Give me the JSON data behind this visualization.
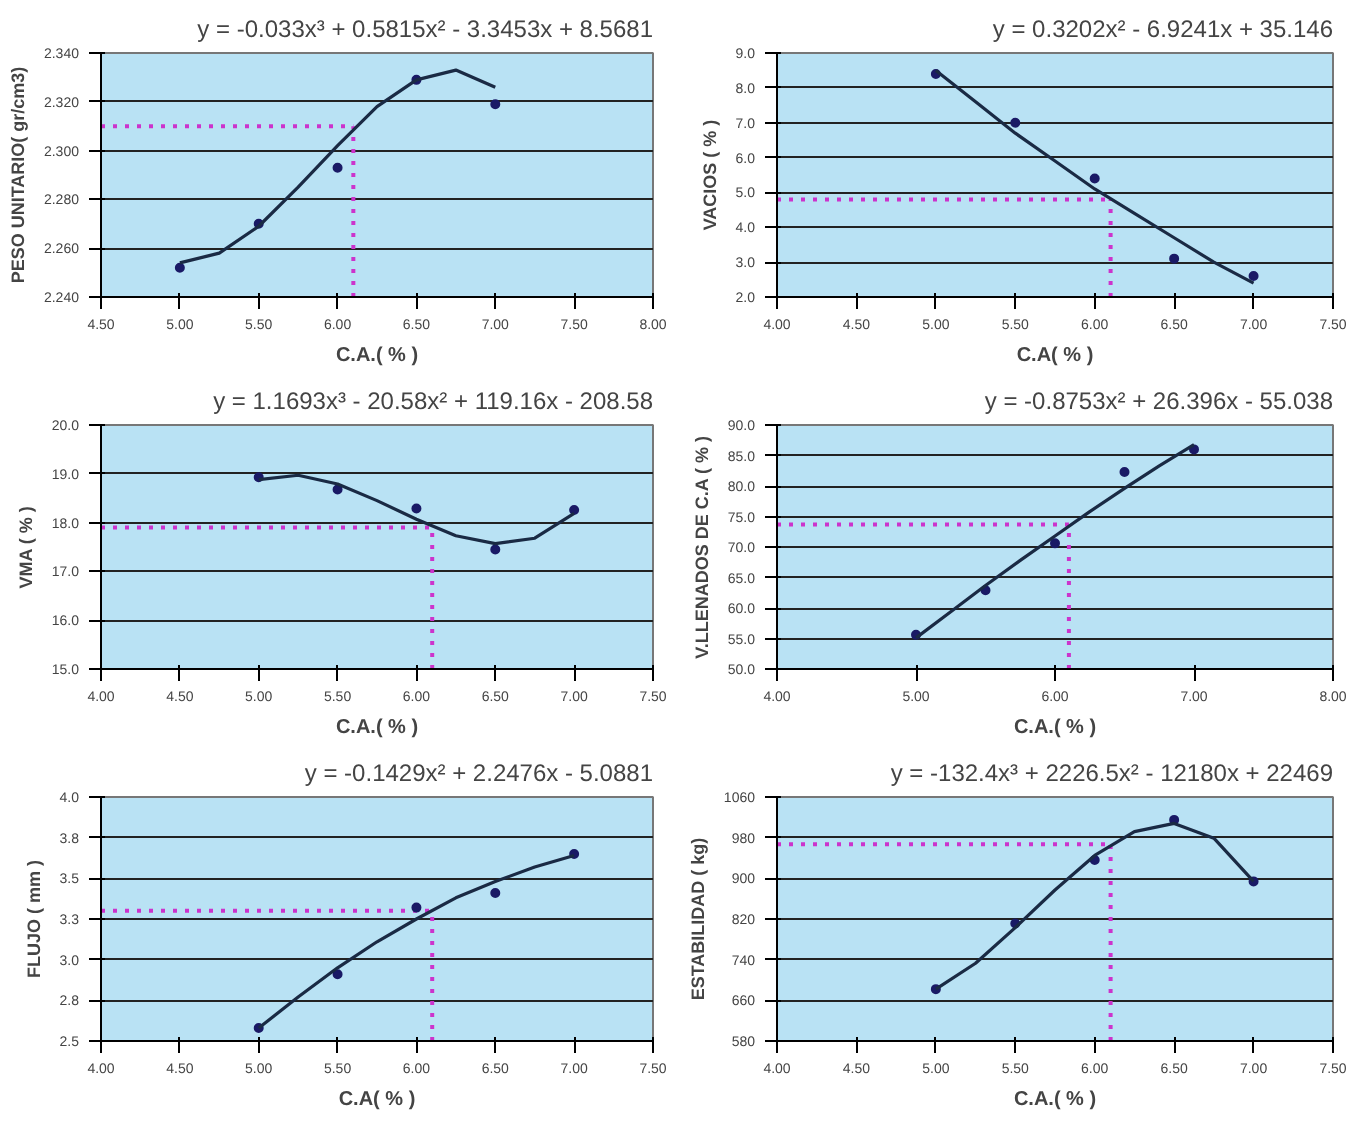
{
  "chart_data": [
    {
      "type": "scatter",
      "title": "y = -0.033x³ + 0.5815x² - 3.3453x + 8.5681",
      "xlabel": "C.A.( % )",
      "ylabel": "PESO UNITARIO( gr/cm3)",
      "x": [
        5.0,
        5.5,
        6.0,
        6.5,
        7.0
      ],
      "series": [
        {
          "color": "#1a1a66",
          "marker": "circle",
          "values": [
            2.252,
            2.27,
            2.293,
            2.329,
            2.319
          ]
        },
        {
          "type": "line",
          "marker": "none",
          "color": "#1a2a44",
          "x": [
            5.0,
            5.25,
            5.5,
            5.75,
            6.0,
            6.25,
            6.5,
            6.75,
            7.0
          ],
          "values": [
            2.254,
            2.258,
            2.269,
            2.285,
            2.302,
            2.318,
            2.329,
            2.333,
            2.326
          ]
        }
      ],
      "xlim": [
        4.5,
        8.0
      ],
      "xticks": [
        {
          "value": 4.5,
          "label": "4.50"
        },
        {
          "value": 5.0,
          "label": "5.00"
        },
        {
          "value": 5.5,
          "label": "5.50"
        },
        {
          "value": 6.0,
          "label": "6.00"
        },
        {
          "value": 6.5,
          "label": "6.50"
        },
        {
          "value": 7.0,
          "label": "7.00"
        },
        {
          "value": 7.5,
          "label": "7.50"
        },
        {
          "value": 8.0,
          "label": "8.00"
        }
      ],
      "ylim": [
        2.24,
        2.34
      ],
      "yticks": [
        {
          "value": 2.24,
          "label": "2.240"
        },
        {
          "value": 2.26,
          "label": "2.260"
        },
        {
          "value": 2.28,
          "label": "2.280"
        },
        {
          "value": 2.3,
          "label": "2.300"
        },
        {
          "value": 2.32,
          "label": "2.320"
        },
        {
          "value": 2.34,
          "label": "2.340"
        }
      ],
      "ref_lines": [
        {
          "axis": "x",
          "value": 6.1,
          "color": "#cc33cc",
          "line_style": "dotted"
        },
        {
          "axis": "y",
          "value": 2.31,
          "color": "#cc33cc",
          "line_style": "dotted"
        }
      ],
      "grid": "y"
    },
    {
      "type": "scatter",
      "title": "y = 0.3202x² - 6.9241x + 35.146",
      "xlabel": "C.A( % )",
      "ylabel": "VACIOS ( % )",
      "x": [
        5.0,
        5.5,
        6.0,
        6.5,
        7.0
      ],
      "series": [
        {
          "color": "#1a1a66",
          "marker": "circle",
          "values": [
            8.4,
            7.0,
            5.4,
            3.1,
            2.6
          ]
        },
        {
          "type": "line",
          "marker": "none",
          "color": "#1a2a44",
          "x": [
            5.0,
            5.25,
            5.5,
            5.75,
            6.0,
            6.25,
            6.5,
            6.75,
            7.0
          ],
          "values": [
            8.5,
            7.6,
            6.7,
            5.9,
            5.1,
            4.4,
            3.7,
            3.0,
            2.4
          ]
        }
      ],
      "xlim": [
        4.0,
        7.5
      ],
      "xticks": [
        {
          "value": 4.0,
          "label": "4.00"
        },
        {
          "value": 4.5,
          "label": "4.50"
        },
        {
          "value": 5.0,
          "label": "5.00"
        },
        {
          "value": 5.5,
          "label": "5.50"
        },
        {
          "value": 6.0,
          "label": "6.00"
        },
        {
          "value": 6.5,
          "label": "6.50"
        },
        {
          "value": 7.0,
          "label": "7.00"
        },
        {
          "value": 7.5,
          "label": "7.50"
        }
      ],
      "ylim": [
        2.0,
        9.0
      ],
      "yticks": [
        {
          "value": 2,
          "label": "2.0"
        },
        {
          "value": 3,
          "label": "3.0"
        },
        {
          "value": 4,
          "label": "4.0"
        },
        {
          "value": 5,
          "label": "5.0"
        },
        {
          "value": 6,
          "label": "6.0"
        },
        {
          "value": 7,
          "label": "7.0"
        },
        {
          "value": 8,
          "label": "8.0"
        },
        {
          "value": 9,
          "label": "9.0"
        }
      ],
      "ref_lines": [
        {
          "axis": "x",
          "value": 6.1,
          "color": "#cc33cc",
          "line_style": "dotted"
        },
        {
          "axis": "y",
          "value": 4.8,
          "color": "#cc33cc",
          "line_style": "dotted"
        }
      ],
      "grid": "y"
    },
    {
      "type": "scatter",
      "title": "y = 1.1693x³ - 20.58x² + 119.16x - 208.58",
      "xlabel": "C.A.( % )",
      "ylabel": "VMA ( % )",
      "x": [
        5.0,
        5.5,
        6.0,
        6.5,
        7.0
      ],
      "series": [
        {
          "color": "#1a1a66",
          "marker": "circle",
          "values": [
            18.93,
            18.68,
            18.29,
            17.45,
            18.26
          ]
        },
        {
          "type": "line",
          "marker": "none",
          "color": "#1a2a44",
          "x": [
            5.0,
            5.25,
            5.5,
            5.75,
            6.0,
            6.25,
            6.5,
            6.75,
            7.0
          ],
          "values": [
            18.88,
            18.97,
            18.79,
            18.45,
            18.07,
            17.73,
            17.57,
            17.68,
            18.19
          ]
        }
      ],
      "xlim": [
        4.0,
        7.5
      ],
      "xticks": [
        {
          "value": 4.0,
          "label": "4.00"
        },
        {
          "value": 4.5,
          "label": "4.50"
        },
        {
          "value": 5.0,
          "label": "5.00"
        },
        {
          "value": 5.5,
          "label": "5.50"
        },
        {
          "value": 6.0,
          "label": "6.00"
        },
        {
          "value": 6.5,
          "label": "6.50"
        },
        {
          "value": 7.0,
          "label": "7.00"
        },
        {
          "value": 7.5,
          "label": "7.50"
        }
      ],
      "ylim": [
        15.0,
        20.0
      ],
      "yticks": [
        {
          "value": 15,
          "label": "15.0"
        },
        {
          "value": 16,
          "label": "16.0"
        },
        {
          "value": 17,
          "label": "17.0"
        },
        {
          "value": 18,
          "label": "18.0"
        },
        {
          "value": 19,
          "label": "19.0"
        },
        {
          "value": 20,
          "label": "20.0"
        }
      ],
      "ref_lines": [
        {
          "axis": "x",
          "value": 6.1,
          "color": "#cc33cc",
          "line_style": "dotted"
        },
        {
          "axis": "y",
          "value": 17.9,
          "color": "#cc33cc",
          "line_style": "dotted"
        }
      ],
      "grid": "y"
    },
    {
      "type": "scatter",
      "title": "y = -0.8753x² + 26.396x - 55.038",
      "xlabel": "C.A.( % )",
      "ylabel": "V.LLENADOS DE C.A ( % )",
      "x": [
        5.0,
        5.5,
        6.0,
        6.5,
        7.0
      ],
      "series": [
        {
          "color": "#1a1a66",
          "marker": "circle",
          "values": [
            55.6,
            62.9,
            70.6,
            82.3,
            86.0
          ]
        },
        {
          "type": "line",
          "marker": "none",
          "color": "#1a2a44",
          "x": [
            5.0,
            5.25,
            5.5,
            5.75,
            6.0,
            6.25,
            6.5,
            6.75,
            7.0
          ],
          "values": [
            55.1,
            59.4,
            63.7,
            67.8,
            71.8,
            75.8,
            79.6,
            83.3,
            86.8
          ]
        }
      ],
      "xlim": [
        4.0,
        8.0
      ],
      "xticks": [
        {
          "value": 4.0,
          "label": "4.00"
        },
        {
          "value": 5.0,
          "label": "5.00"
        },
        {
          "value": 6.0,
          "label": "6.00"
        },
        {
          "value": 7.0,
          "label": "7.00"
        },
        {
          "value": 8.0,
          "label": "8.00"
        }
      ],
      "ylim": [
        50.0,
        90.0
      ],
      "yticks": [
        {
          "value": 50,
          "label": "50.0"
        },
        {
          "value": 55,
          "label": "55.0"
        },
        {
          "value": 60,
          "label": "60.0"
        },
        {
          "value": 65,
          "label": "65.0"
        },
        {
          "value": 70,
          "label": "70.0"
        },
        {
          "value": 75,
          "label": "75.0"
        },
        {
          "value": 80,
          "label": "80.0"
        },
        {
          "value": 85,
          "label": "85.0"
        },
        {
          "value": 90,
          "label": "90.0"
        }
      ],
      "ref_lines": [
        {
          "axis": "x",
          "value": 6.1,
          "color": "#cc33cc",
          "line_style": "dotted"
        },
        {
          "axis": "y",
          "value": 73.7,
          "color": "#cc33cc",
          "line_style": "dotted"
        }
      ],
      "grid": "y"
    },
    {
      "type": "scatter",
      "title": "y = -0.1429x² + 2.2476x - 5.0881",
      "xlabel": "C.A( % )",
      "ylabel": "FLUJO ( mm )",
      "x": [
        5.0,
        5.5,
        6.0,
        6.5,
        7.0
      ],
      "series": [
        {
          "color": "#1a1a66",
          "marker": "circle",
          "values": [
            2.58,
            2.91,
            3.32,
            3.41,
            3.65
          ]
        },
        {
          "type": "line",
          "marker": "none",
          "color": "#1a2a44",
          "x": [
            5.0,
            5.25,
            5.5,
            5.75,
            6.0,
            6.25,
            6.5,
            6.75,
            7.0
          ],
          "values": [
            2.58,
            2.77,
            2.95,
            3.11,
            3.25,
            3.38,
            3.48,
            3.57,
            3.64
          ]
        }
      ],
      "xlim": [
        4.0,
        7.5
      ],
      "xticks": [
        {
          "value": 4.0,
          "label": "4.00"
        },
        {
          "value": 4.5,
          "label": "4.50"
        },
        {
          "value": 5.0,
          "label": "5.00"
        },
        {
          "value": 5.5,
          "label": "5.50"
        },
        {
          "value": 6.0,
          "label": "6.00"
        },
        {
          "value": 6.5,
          "label": "6.50"
        },
        {
          "value": 7.0,
          "label": "7.00"
        },
        {
          "value": 7.5,
          "label": "7.50"
        }
      ],
      "ylim": [
        2.5,
        4.0
      ],
      "yticks": [
        {
          "value": 2.5,
          "label": "2.5"
        },
        {
          "value": 2.75,
          "label": "2.8"
        },
        {
          "value": 3.0,
          "label": "3.0"
        },
        {
          "value": 3.25,
          "label": "3.3"
        },
        {
          "value": 3.5,
          "label": "3.5"
        },
        {
          "value": 3.75,
          "label": "3.8"
        },
        {
          "value": 4.0,
          "label": "4.0"
        }
      ],
      "ref_lines": [
        {
          "axis": "x",
          "value": 6.1,
          "color": "#cc33cc",
          "line_style": "dotted"
        },
        {
          "axis": "y",
          "value": 3.3,
          "color": "#cc33cc",
          "line_style": "dotted"
        }
      ],
      "grid": "y"
    },
    {
      "type": "scatter",
      "title": "y = -132.4x³ + 2226.5x² - 12180x + 22469",
      "xlabel": "C.A.( % )",
      "ylabel": "ESTABILIDAD ( kg)",
      "x": [
        5.0,
        5.5,
        6.0,
        6.5,
        7.0
      ],
      "series": [
        {
          "color": "#1a1a66",
          "marker": "circle",
          "values": [
            682,
            811,
            936,
            1015,
            894
          ]
        },
        {
          "type": "line",
          "marker": "none",
          "color": "#1a2a44",
          "x": [
            5.0,
            5.25,
            5.5,
            5.75,
            6.0,
            6.25,
            6.5,
            6.75,
            7.0
          ],
          "values": [
            682,
            733,
            803,
            877,
            945,
            992,
            1008,
            979,
            894
          ]
        }
      ],
      "xlim": [
        4.0,
        7.5
      ],
      "xticks": [
        {
          "value": 4.0,
          "label": "4.00"
        },
        {
          "value": 4.5,
          "label": "4.50"
        },
        {
          "value": 5.0,
          "label": "5.00"
        },
        {
          "value": 5.5,
          "label": "5.50"
        },
        {
          "value": 6.0,
          "label": "6.00"
        },
        {
          "value": 6.5,
          "label": "6.50"
        },
        {
          "value": 7.0,
          "label": "7.00"
        },
        {
          "value": 7.5,
          "label": "7.50"
        }
      ],
      "ylim": [
        580,
        1060
      ],
      "yticks": [
        580,
        660,
        740,
        820,
        900,
        980,
        1060
      ],
      "ref_lines": [
        {
          "axis": "x",
          "value": 6.1,
          "color": "#cc33cc",
          "line_style": "dotted"
        },
        {
          "axis": "y",
          "value": 967,
          "color": "#cc33cc",
          "line_style": "dotted"
        }
      ],
      "grid": "y"
    }
  ]
}
